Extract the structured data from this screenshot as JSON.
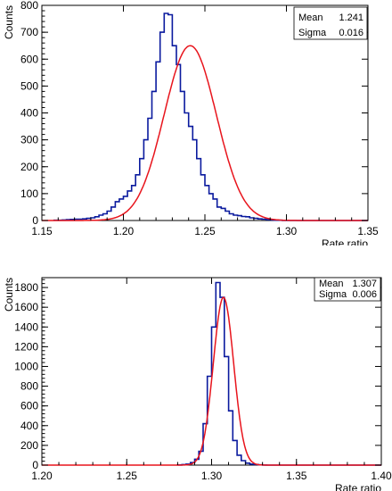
{
  "chart_data": [
    {
      "type": "histogram",
      "xlabel": "Rate ratio",
      "ylabel": "Counts",
      "xlim": [
        1.15,
        1.35
      ],
      "ylim": [
        0,
        800
      ],
      "xticks": [
        "1.15",
        "1.20",
        "1.25",
        "1.30",
        "1.35"
      ],
      "yticks": [
        "0",
        "100",
        "200",
        "300",
        "400",
        "500",
        "600",
        "700",
        "800"
      ],
      "stats": {
        "mean_label": "Mean",
        "mean": "1.241",
        "sigma_label": "Sigma",
        "sigma": "0.016"
      },
      "series": [
        {
          "style": "step",
          "color": "#0a1a9e",
          "x_start": 1.1575,
          "bin_width": 0.0025,
          "values": [
            1,
            1,
            2,
            3,
            4,
            5,
            5,
            6,
            8,
            10,
            14,
            20,
            25,
            35,
            50,
            70,
            80,
            90,
            110,
            130,
            170,
            230,
            300,
            380,
            480,
            590,
            700,
            770,
            765,
            650,
            580,
            480,
            400,
            350,
            300,
            230,
            170,
            130,
            100,
            80,
            50,
            45,
            35,
            25,
            20,
            18,
            15,
            14,
            10,
            8,
            6,
            5,
            3,
            2,
            1,
            1,
            0,
            0
          ]
        },
        {
          "style": "gauss",
          "color": "#e8141c",
          "amplitude": 650,
          "mean": 1.241,
          "sigma": 0.016
        }
      ]
    },
    {
      "type": "histogram",
      "xlabel": "Rate ratio",
      "ylabel": "Counts",
      "xlim": [
        1.2,
        1.4
      ],
      "ylim": [
        0,
        1900
      ],
      "xticks": [
        "1.20",
        "1.25",
        "1.30",
        "1.35",
        "1.40"
      ],
      "yticks": [
        "0",
        "200",
        "400",
        "600",
        "800",
        "1000",
        "1200",
        "1400",
        "1600",
        "1800"
      ],
      "stats": {
        "mean_label": "Mean",
        "mean": "1.307",
        "sigma_label": "Sigma",
        "sigma": "0.006"
      },
      "series": [
        {
          "style": "step",
          "color": "#0a1a9e",
          "x_start": 1.28,
          "bin_width": 0.0025,
          "values": [
            2,
            5,
            10,
            25,
            60,
            140,
            420,
            900,
            1400,
            1850,
            1700,
            1100,
            550,
            250,
            100,
            45,
            20,
            10,
            6,
            3,
            1
          ]
        },
        {
          "style": "gauss",
          "color": "#e8141c",
          "amplitude": 1700,
          "mean": 1.307,
          "sigma": 0.006
        }
      ]
    }
  ]
}
